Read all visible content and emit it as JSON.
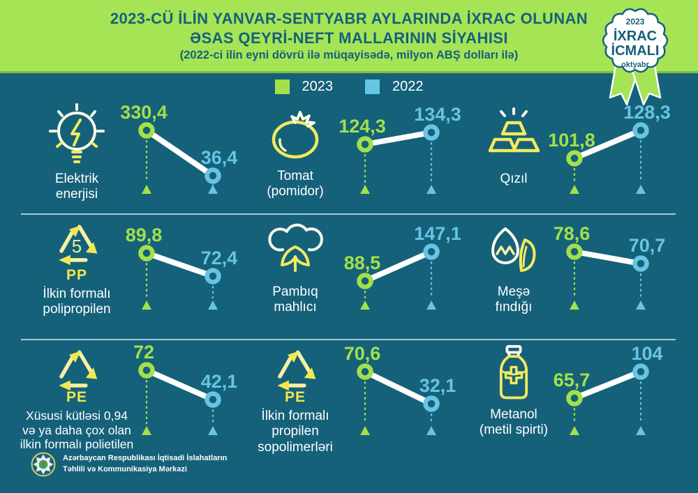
{
  "header": {
    "title_line1": "2023-CÜ İLİN YANVAR-SENTYABR AYLARINDA İXRAC OLUNAN",
    "title_line2": "ƏSAS QEYRİ-NEFT MALLARININ SİYAHISI",
    "subtitle": "(2022-ci ilin eyni dövrü ilə müqayisədə, milyon ABŞ dolları ilə)"
  },
  "badge": {
    "year": "2023",
    "line1": "İXRAC",
    "line2": "İCMALI",
    "month": "oktyabr"
  },
  "legend": [
    {
      "label": "2023",
      "color": "#a3e04a"
    },
    {
      "label": "2022",
      "color": "#66c5e3"
    }
  ],
  "colors": {
    "background": "#15617a",
    "header_green": "#a5e455",
    "accent_2023": "#a3e04a",
    "accent_2022": "#66c5e3",
    "icon_yellow": "#f2ea5f",
    "title_teal": "#15607c",
    "white": "#ffffff"
  },
  "footer": {
    "text": "Azərbaycan Respublikası İqtisadi İslahatların\nTəhlili və Kommunikasiya Mərkəzi"
  },
  "chart_data": {
    "type": "line",
    "subtype": "slope-pairs",
    "unit": "milyon ABŞ dolları",
    "period": "yanvar-sentyabr 2023 vs 2022",
    "series_labels": [
      "2023",
      "2022"
    ],
    "items": [
      {
        "name": "Elektrik enerjisi",
        "icon": "lightbulb-icon",
        "label": "Elektrik\nenerjisi",
        "v2023": 330.4,
        "v2022": 36.4,
        "d2023": "330,4",
        "d2022": "36,4",
        "layout": {
          "gy": 45,
          "by": 110
        }
      },
      {
        "name": "Tomat (pomidor)",
        "icon": "tomato-icon",
        "label": "Tomat\n(pomidor)",
        "v2023": 124.3,
        "v2022": 134.3,
        "d2023": "124,3",
        "d2022": "134,3",
        "layout": {
          "gy": 65,
          "by": 48
        }
      },
      {
        "name": "Qızıl",
        "icon": "gold-bars-icon",
        "label": "Qızıl",
        "v2023": 101.8,
        "v2022": 128.3,
        "d2023": "101,8",
        "d2022": "128,3",
        "layout": {
          "gy": 85,
          "by": 45
        }
      },
      {
        "name": "İlkin formalı polipropilen",
        "icon": "recycle-pp-icon",
        "label": "İlkin formalı\npolipropilen",
        "v2023": 89.8,
        "v2022": 72.4,
        "d2023": "89,8",
        "d2022": "72,4",
        "layout": {
          "gy": 55,
          "by": 88
        }
      },
      {
        "name": "Pambıq mahlıcı",
        "icon": "cotton-icon",
        "label": "Pambıq\nmahlıcı",
        "v2023": 88.5,
        "v2022": 147.1,
        "d2023": "88,5",
        "d2022": "147,1",
        "layout": {
          "gy": 95,
          "by": 53
        }
      },
      {
        "name": "Meşə fındığı",
        "icon": "hazelnut-icon",
        "label": "Meşə\nfındığı",
        "v2023": 78.6,
        "v2022": 70.7,
        "d2023": "78,6",
        "d2022": "70,7",
        "layout": {
          "gy": 53,
          "by": 70
        }
      },
      {
        "name": "Xüsusi kütləsi 0,94 və ya daha çox olan ilkin formalı polietilen",
        "icon": "recycle-pe-icon",
        "label": "Xüsusi kütləsi 0,94\nvə ya daha çox olan\nilkin formalı polietilen",
        "v2023": 72,
        "v2022": 42.1,
        "d2023": "72",
        "d2022": "42,1",
        "layout": {
          "gy": 43,
          "by": 85
        }
      },
      {
        "name": "İlkin formalı propilen sopolimerləri",
        "icon": "recycle-pe-icon",
        "label": "İlkin formalı\npropilen\nsopolimerləri",
        "v2023": 70.6,
        "v2022": 32.1,
        "d2023": "70,6",
        "d2022": "32,1",
        "layout": {
          "gy": 45,
          "by": 91
        }
      },
      {
        "name": "Metanol (metil spirti)",
        "icon": "medicine-bottle-icon",
        "label": "Metanol\n(metil spirti)",
        "v2023": 65.7,
        "v2022": 104,
        "d2023": "65,7",
        "d2022": "104",
        "layout": {
          "gy": 83,
          "by": 45
        }
      }
    ],
    "recycle_codes": {
      "pp_number": "5",
      "pp": "PP",
      "pe": "PE"
    }
  }
}
